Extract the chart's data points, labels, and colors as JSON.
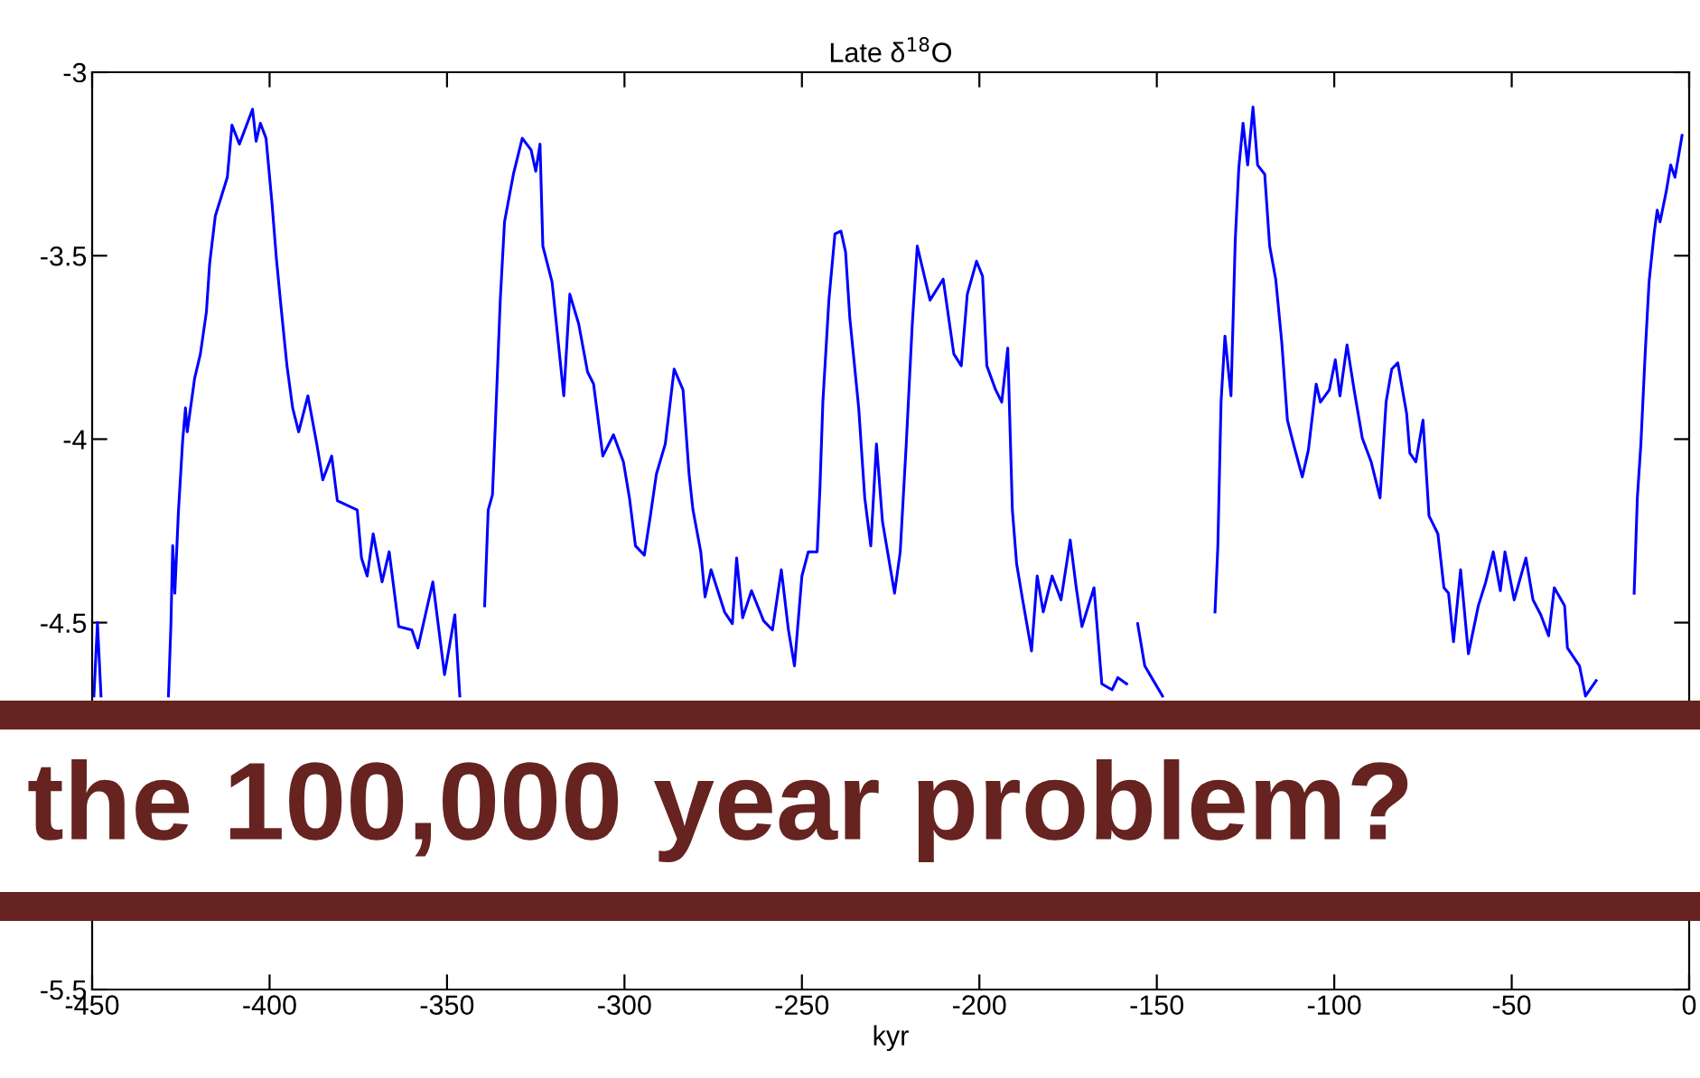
{
  "chart_data": {
    "type": "line",
    "title": "Late δ$^{18}$O",
    "xlabel": "kyr",
    "annotations": [
      "the 100,000 year problem?"
    ],
    "xlim": [
      -450,
      0
    ],
    "xticks": [
      -450,
      -400,
      -350,
      -300,
      -250,
      -200,
      -150,
      -100,
      -50,
      0
    ],
    "ylim": [
      -5.5,
      -3
    ],
    "yticks": [
      -5.5,
      -4.5,
      -4,
      -3.5,
      -3
    ],
    "grid": false,
    "legend": false,
    "marker": "none",
    "line_style": "solid",
    "series": [
      {
        "color": "#0000ff",
        "x": [
          -449.5,
          -448.5,
          -447.5,
          -446,
          -428.5,
          -427.8,
          -427.3,
          -426.7,
          -425.7,
          -424.5,
          -423.7,
          -423.2,
          -421.1,
          -419.5,
          -417.8,
          -416.9,
          -415.3,
          -411.9,
          -410.6,
          -408.5,
          -404.8,
          -403.8,
          -402.6,
          -401,
          -399.3,
          -398.1,
          -396.8,
          -395.1,
          -393.5,
          -391.8,
          -389.2,
          -386.7,
          -385,
          -382.5,
          -380.9,
          -375.3,
          -374.1,
          -372.5,
          -370.8,
          -368.3,
          -366.3,
          -363.6,
          -359.9,
          -358.2,
          -354,
          -350.7,
          -347.8,
          -346.4,
          -343,
          -339.4,
          -338.4,
          -337.2,
          -336.4,
          -335,
          -333.8,
          -331.3,
          -328.8,
          -326.3,
          -325,
          -323.8,
          -323,
          -320.4,
          -317.1,
          -315.4,
          -312.9,
          -310.4,
          -308.7,
          -306.1,
          -303.1,
          -300.3,
          -298.6,
          -296.9,
          -294.4,
          -292.7,
          -291,
          -288.5,
          -286,
          -283.5,
          -281.8,
          -280.7,
          -278.5,
          -277.3,
          -275.6,
          -271.8,
          -269.6,
          -268.4,
          -266.7,
          -264.2,
          -260.8,
          -258.3,
          -255.8,
          -253.8,
          -252.1,
          -250,
          -248.2,
          -245.7,
          -244.9,
          -244.1,
          -242.4,
          -240.7,
          -239,
          -237.7,
          -236.5,
          -234,
          -232.3,
          -230.6,
          -229,
          -227.3,
          -223.9,
          -222.3,
          -220.6,
          -218.9,
          -217.5,
          -213.9,
          -210.2,
          -207.2,
          -205.1,
          -203.4,
          -200.8,
          -199.1,
          -197.9,
          -195.4,
          -193.7,
          -192,
          -190.7,
          -189.5,
          -187.8,
          -185.3,
          -183.7,
          -182,
          -179.5,
          -177,
          -174.4,
          -172.7,
          -171.1,
          -167.7,
          -165.5,
          -162.6,
          -161,
          -158.5,
          -156.5,
          -155.4,
          -153.4,
          -148.4,
          -140,
          -133.6,
          -132.8,
          -131.9,
          -130.8,
          -129.1,
          -127.9,
          -126.9,
          -125.7,
          -124.4,
          -122.9,
          -121.6,
          -119.6,
          -118.2,
          -116.5,
          -114.8,
          -113.2,
          -111.5,
          -109,
          -107.3,
          -105.1,
          -103.9,
          -101.4,
          -99.7,
          -98.4,
          -96.4,
          -94.4,
          -92.1,
          -89.6,
          -87.1,
          -85.4,
          -83.8,
          -82.1,
          -79.6,
          -78.7,
          -77,
          -75,
          -73.3,
          -70.8,
          -69.1,
          -67.8,
          -66.4,
          -64.4,
          -62.2,
          -59.4,
          -57.3,
          -55.2,
          -53.2,
          -51.9,
          -49.3,
          -46,
          -44,
          -41.8,
          -39.6,
          -38,
          -35.1,
          -34.3,
          -30.9,
          -29.2,
          -26.2,
          -20,
          -15.5,
          -14.6,
          -13.6,
          -12.4,
          -11.3,
          -9.9,
          -9,
          -8.2,
          -6.5,
          -5.2,
          -4,
          -2
        ],
        "values": [
          -4.7,
          -4.5,
          -4.7,
          null,
          -4.7,
          -4.505,
          -4.29,
          -4.42,
          -4.2,
          -4.005,
          -3.915,
          -3.98,
          -3.833,
          -3.768,
          -3.653,
          -3.523,
          -3.392,
          -3.286,
          -3.144,
          -3.196,
          -3.101,
          -3.188,
          -3.139,
          -3.18,
          -3.359,
          -3.506,
          -3.637,
          -3.8,
          -3.915,
          -3.98,
          -3.882,
          -4.013,
          -4.111,
          -4.046,
          -4.168,
          -4.193,
          -4.324,
          -4.373,
          -4.258,
          -4.389,
          -4.307,
          -4.511,
          -4.52,
          -4.569,
          -4.389,
          -4.642,
          -4.479,
          -4.7,
          null,
          -4.454,
          -4.193,
          -4.152,
          -3.964,
          -3.621,
          -3.408,
          -3.278,
          -3.18,
          -3.212,
          -3.27,
          -3.196,
          -3.474,
          -3.572,
          -3.882,
          -3.605,
          -3.686,
          -3.817,
          -3.85,
          -4.046,
          -3.988,
          -4.062,
          -4.16,
          -4.291,
          -4.316,
          -4.209,
          -4.095,
          -4.013,
          -3.809,
          -3.866,
          -4.095,
          -4.193,
          -4.307,
          -4.43,
          -4.356,
          -4.471,
          -4.503,
          -4.324,
          -4.487,
          -4.413,
          -4.495,
          -4.52,
          -4.356,
          -4.52,
          -4.618,
          -4.373,
          -4.307,
          -4.307,
          -4.127,
          -3.899,
          -3.621,
          -3.441,
          -3.433,
          -3.49,
          -3.67,
          -3.915,
          -4.16,
          -4.291,
          -4.013,
          -4.225,
          -4.42,
          -4.307,
          -4.013,
          -3.686,
          -3.474,
          -3.621,
          -3.564,
          -3.768,
          -3.8,
          -3.605,
          -3.515,
          -3.556,
          -3.8,
          -3.866,
          -3.899,
          -3.752,
          -4.193,
          -4.34,
          -4.438,
          -4.577,
          -4.373,
          -4.471,
          -4.373,
          -4.438,
          -4.275,
          -4.405,
          -4.511,
          -4.405,
          -4.667,
          -4.683,
          -4.65,
          -4.667,
          null,
          -4.503,
          -4.618,
          -4.7,
          null,
          -4.471,
          -4.291,
          -3.899,
          -3.719,
          -3.882,
          -3.458,
          -3.261,
          -3.139,
          -3.253,
          -3.095,
          -3.253,
          -3.278,
          -3.474,
          -3.564,
          -3.735,
          -3.948,
          -4.013,
          -4.103,
          -4.03,
          -3.85,
          -3.899,
          -3.866,
          -3.784,
          -3.882,
          -3.743,
          -3.866,
          -3.997,
          -4.062,
          -4.16,
          -3.899,
          -3.809,
          -3.792,
          -3.931,
          -4.038,
          -4.062,
          -3.948,
          -4.209,
          -4.258,
          -4.405,
          -4.42,
          -4.552,
          -4.356,
          -4.585,
          -4.454,
          -4.389,
          -4.307,
          -4.413,
          -4.307,
          -4.438,
          -4.324,
          -4.438,
          -4.479,
          -4.536,
          -4.405,
          -4.454,
          -4.569,
          -4.618,
          -4.7,
          -4.658,
          null,
          -4.42,
          -4.16,
          -4.013,
          -3.768,
          -3.572,
          -3.441,
          -3.376,
          -3.408,
          -3.327,
          -3.253,
          -3.286,
          -3.172
        ]
      }
    ]
  }
}
